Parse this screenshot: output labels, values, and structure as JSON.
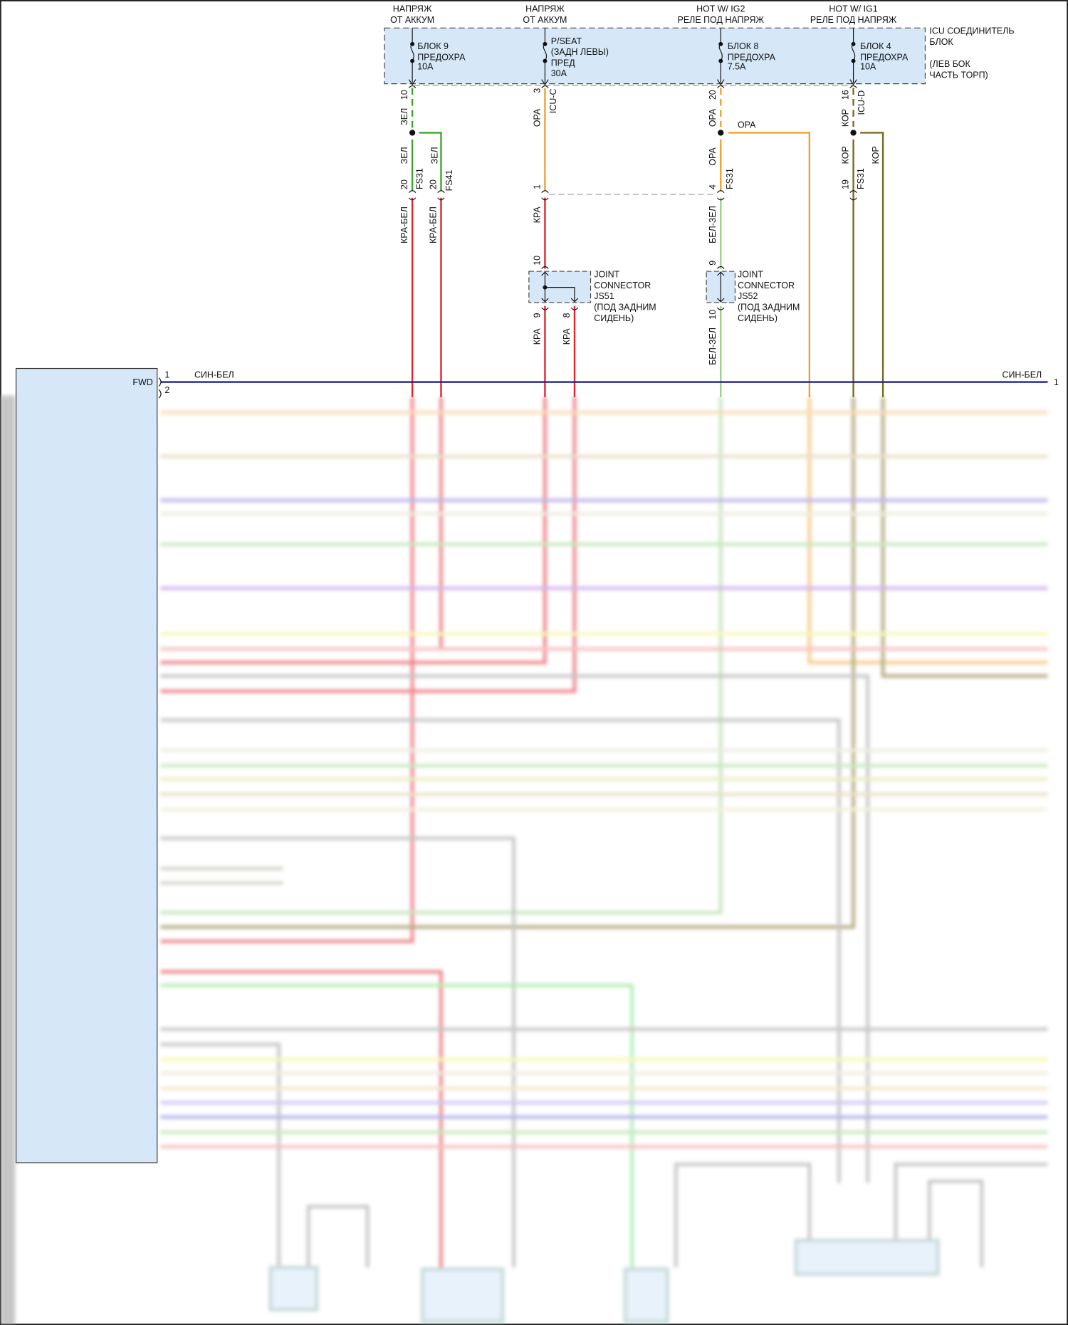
{
  "sources": [
    {
      "line1": "НАПРЯЖ",
      "line2": "ОТ АККУМ"
    },
    {
      "line1": "НАПРЯЖ",
      "line2": "ОТ АККУМ"
    },
    {
      "line1": "HOT W/ IG2",
      "line2": "РЕЛЕ ПОД НАПРЯЖ"
    },
    {
      "line1": "HOT W/ IG1",
      "line2": "РЕЛЕ ПОД НАПРЯЖ"
    }
  ],
  "fuses": [
    {
      "l1": "БЛОК 9",
      "l2": "ПРЕДОХРА",
      "l3": "10A"
    },
    {
      "l1": "P/SEAT",
      "l2": "(ЗАДН ЛЕВЫ)",
      "l3": "ПРЕД",
      "l4": "30A"
    },
    {
      "l1": "БЛОК 8",
      "l2": "ПРЕДОХРА",
      "l3": "7.5A"
    },
    {
      "l1": "БЛОК 4",
      "l2": "ПРЕДОХРА",
      "l3": "10A"
    }
  ],
  "icu_block": {
    "l1": "ICU СОЕДИНИТЕЛЬ",
    "l2": "БЛОК",
    "l3": "(ЛЕВ БОК",
    "l4": "ЧАСТЬ ТОРП)"
  },
  "pins": {
    "p10": "10",
    "p3": "3",
    "p20": "20",
    "p16": "16",
    "fs31_20a": "20",
    "fs41_20": "20",
    "p1": "1",
    "p4": "4",
    "p19": "19",
    "js51_10": "10",
    "js51_9": "9",
    "js51_8": "8",
    "js52_9": "9",
    "js52_10": "10",
    "fwd1": "1",
    "fwd2": "2",
    "right1": "1"
  },
  "connectors": {
    "icu_c": "ICU-C",
    "icu_d": "ICU-D",
    "fs31": "FS31",
    "fs41": "FS41",
    "fwd": "FWD"
  },
  "wires": {
    "zel": "ЗЕЛ",
    "opa": "ОРА",
    "kop": "КОР",
    "kra_bel": "КРА-БЕЛ",
    "kra": "КРА",
    "bel_zel": "БЕЛ-ЗЕЛ",
    "sin_bel": "СИН-БЕЛ"
  },
  "joint_connectors": [
    {
      "l1": "JOINT",
      "l2": "CONNECTOR",
      "l3": "JS51",
      "l4": "(ПОД ЗАДНИМ",
      "l5": "СИДЕНЬ)"
    },
    {
      "l1": "JOINT",
      "l2": "CONNECTOR",
      "l3": "JS52",
      "l4": "(ПОД ЗАДНИМ",
      "l5": "СИДЕНЬ)"
    }
  ],
  "colors": {
    "green": "#3aa52a",
    "orange": "#f0a030",
    "red": "#e0242c",
    "brown": "#7a6a1e",
    "lightgreen": "#9ccf8a",
    "blue": "#1c1c9c",
    "box_fill": "#d6e8f8"
  }
}
